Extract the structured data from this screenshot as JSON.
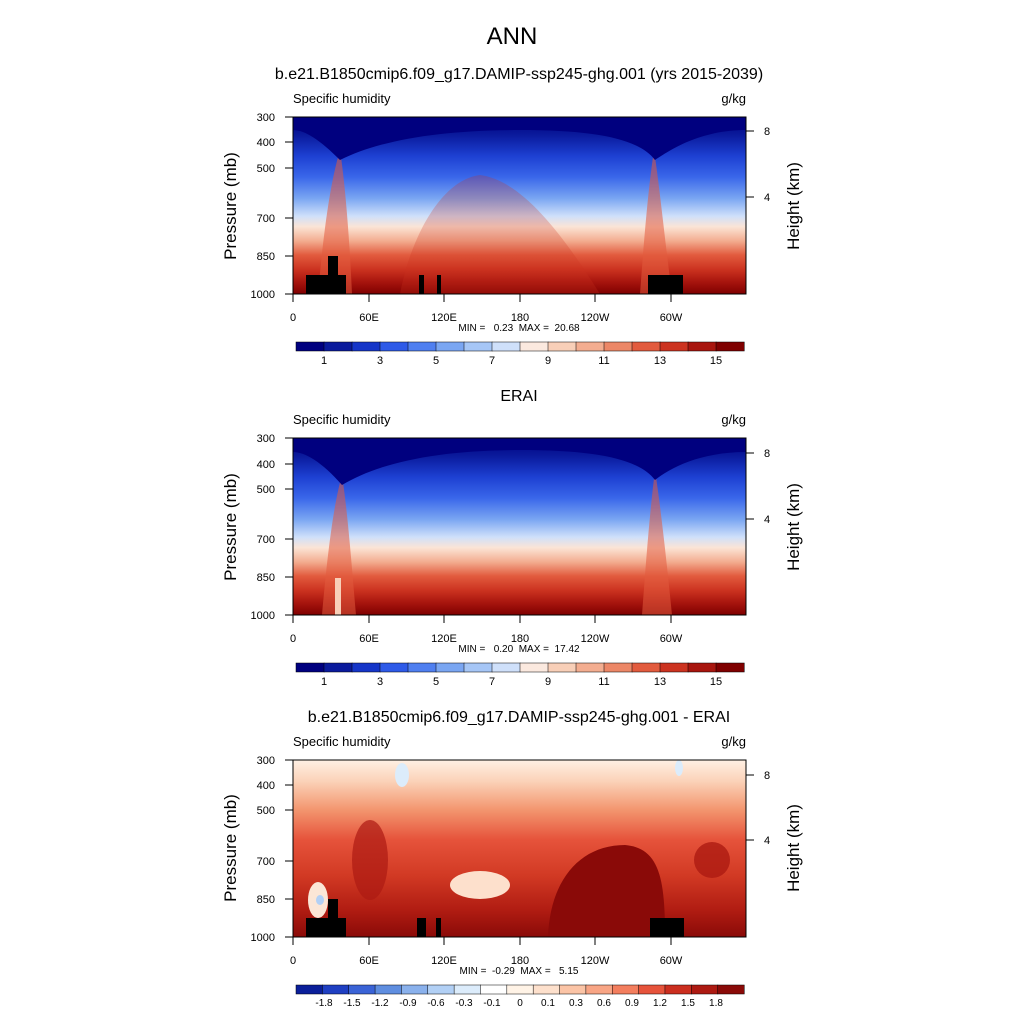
{
  "figure_title": "ANN",
  "colors": {
    "anom_pos": [
      "#fff3e6",
      "#fde0cc",
      "#fbc4a6",
      "#f8a585",
      "#f37e5e",
      "#e6533b",
      "#cb2e1f",
      "#ad1a12",
      "#8a0a08"
    ],
    "anom_neg": [
      "#dcecfb",
      "#b2d0f5",
      "#8ab1ec",
      "#5f8ee0",
      "#3a63d6",
      "#1f3fc2",
      "#0b1f9a"
    ],
    "sequential": [
      "#00007f",
      "#0a1a9c",
      "#1535c8",
      "#2e5ae8",
      "#4f7ff0",
      "#7aa6f2",
      "#a6c6f6",
      "#cfe0fa",
      "#fbe9df",
      "#f8cfb8",
      "#f3ad90",
      "#ec8767",
      "#e25b3e",
      "#cc3320",
      "#a8150e",
      "#7f0000"
    ]
  },
  "chart_data": [
    {
      "type": "heatmap",
      "title": "b.e21.B1850cmip6.f09_g17.DAMIP-ssp245-ghg.001 (yrs 2015-2039)",
      "variable_label": "Specific humidity",
      "units": "g/kg",
      "ylabel": "Pressure (mb)",
      "y2label": "Height (km)",
      "x_ticks": [
        "0",
        "60E",
        "120E",
        "180",
        "120W",
        "60W"
      ],
      "y_ticks": [
        "300",
        "400",
        "500",
        "700",
        "850",
        "1000"
      ],
      "y2_ticks": [
        "8",
        "4"
      ],
      "stats": "MIN =   0.23  MAX =  20.68",
      "colorbar_labels": [
        "1",
        "3",
        "5",
        "7",
        "9",
        "11",
        "13",
        "15"
      ],
      "palette": "sequential"
    },
    {
      "type": "heatmap",
      "title": "ERAI",
      "variable_label": "Specific humidity",
      "units": "g/kg",
      "ylabel": "Pressure (mb)",
      "y2label": "Height (km)",
      "x_ticks": [
        "0",
        "60E",
        "120E",
        "180",
        "120W",
        "60W"
      ],
      "y_ticks": [
        "300",
        "400",
        "500",
        "700",
        "850",
        "1000"
      ],
      "y2_ticks": [
        "8",
        "4"
      ],
      "stats": "MIN =   0.20  MAX =  17.42",
      "colorbar_labels": [
        "1",
        "3",
        "5",
        "7",
        "9",
        "11",
        "13",
        "15"
      ],
      "palette": "sequential"
    },
    {
      "type": "heatmap",
      "title": "b.e21.B1850cmip6.f09_g17.DAMIP-ssp245-ghg.001 - ERAI",
      "variable_label": "Specific humidity",
      "units": "g/kg",
      "ylabel": "Pressure (mb)",
      "y2label": "Height (km)",
      "x_ticks": [
        "0",
        "60E",
        "120E",
        "180",
        "120W",
        "60W"
      ],
      "y_ticks": [
        "300",
        "400",
        "500",
        "700",
        "850",
        "1000"
      ],
      "y2_ticks": [
        "8",
        "4"
      ],
      "stats": "MIN =  -0.29  MAX =   5.15",
      "colorbar_labels": [
        "-1.8",
        "-1.5",
        "-1.2",
        "-0.9",
        "-0.6",
        "-0.3",
        "-0.1",
        "0",
        "0.1",
        "0.3",
        "0.6",
        "0.9",
        "1.2",
        "1.5",
        "1.8"
      ],
      "palette": "diverging"
    }
  ]
}
